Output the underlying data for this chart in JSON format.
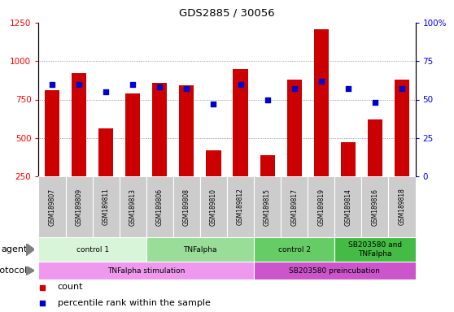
{
  "title": "GDS2885 / 30056",
  "samples": [
    "GSM189807",
    "GSM189809",
    "GSM189811",
    "GSM189813",
    "GSM189806",
    "GSM189808",
    "GSM189810",
    "GSM189812",
    "GSM189815",
    "GSM189817",
    "GSM189819",
    "GSM189814",
    "GSM189816",
    "GSM189818"
  ],
  "counts": [
    810,
    920,
    560,
    790,
    860,
    840,
    420,
    950,
    390,
    880,
    1210,
    470,
    620,
    880
  ],
  "percentiles": [
    60,
    60,
    55,
    60,
    58,
    57,
    47,
    60,
    50,
    57,
    62,
    57,
    48,
    57
  ],
  "bar_color": "#cc0000",
  "dot_color": "#0000cc",
  "ylim_left": [
    250,
    1250
  ],
  "ylim_right": [
    0,
    100
  ],
  "yticks_left": [
    250,
    500,
    750,
    1000,
    1250
  ],
  "yticks_right": [
    0,
    25,
    50,
    75,
    100
  ],
  "ytick_labels_right": [
    "0",
    "25",
    "50",
    "75",
    "100%"
  ],
  "grid_values": [
    500,
    750,
    1000
  ],
  "agent_groups": [
    {
      "label": "control 1",
      "start": 0,
      "end": 4,
      "color": "#d9f5d9"
    },
    {
      "label": "TNFalpha",
      "start": 4,
      "end": 8,
      "color": "#99dd99"
    },
    {
      "label": "control 2",
      "start": 8,
      "end": 11,
      "color": "#66cc66"
    },
    {
      "label": "SB203580 and\nTNFalpha",
      "start": 11,
      "end": 14,
      "color": "#44bb44"
    }
  ],
  "protocol_groups": [
    {
      "label": "TNFalpha stimulation",
      "start": 0,
      "end": 8,
      "color": "#ee99ee"
    },
    {
      "label": "SB203580 preincubation",
      "start": 8,
      "end": 14,
      "color": "#cc55cc"
    }
  ],
  "agent_label": "agent",
  "protocol_label": "protocol",
  "legend_count_color": "#cc0000",
  "legend_percentile_color": "#0000cc",
  "background_color": "#ffffff",
  "sample_bg_color": "#cccccc"
}
